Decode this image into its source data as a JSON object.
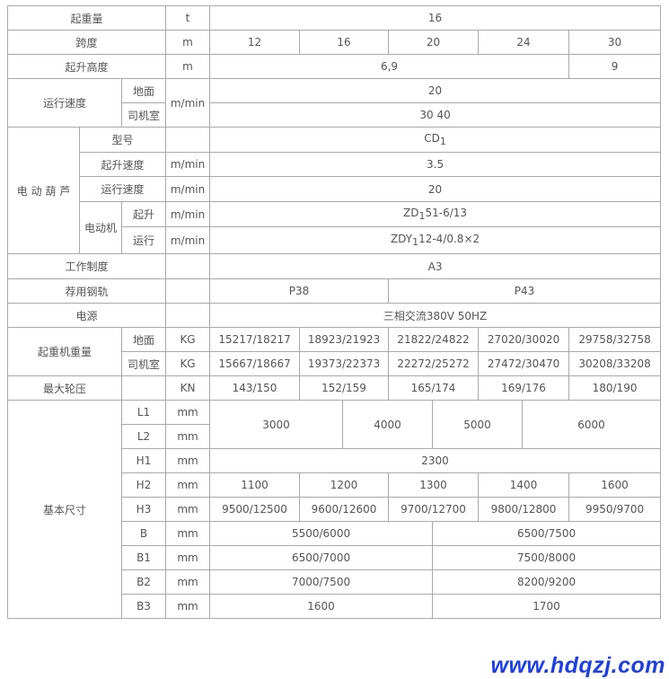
{
  "capacity": {
    "label": "起重量",
    "unit": "t",
    "value": "16"
  },
  "span": {
    "label": "跨度",
    "unit": "m",
    "values": [
      "12",
      "16",
      "20",
      "24",
      "30"
    ]
  },
  "lift_height": {
    "label": "起升高度",
    "unit": "m",
    "values": [
      "6,9",
      "9"
    ]
  },
  "travel_speed": {
    "label": "运行速度",
    "unit": "m/min",
    "rows": [
      {
        "sub": "地面",
        "value": "20"
      },
      {
        "sub": "司机室",
        "value": "30 40"
      }
    ]
  },
  "hoist": {
    "label": "电 动 葫 芦",
    "model": {
      "label": "型号",
      "unit": "",
      "value": "CD",
      "subscript": "1"
    },
    "lift_speed": {
      "label": "起升速度",
      "unit": "m/min",
      "value": "3.5"
    },
    "travel_speed": {
      "label": "运行速度",
      "unit": "m/min",
      "value": "20"
    },
    "motor": {
      "label": "电动机",
      "rows": [
        {
          "sub": "起升",
          "unit": "m/min",
          "prefix": "ZD",
          "subscript": "1",
          "suffix": "51-6/13"
        },
        {
          "sub": "运行",
          "unit": "m/min",
          "prefix": "ZDY",
          "subscript": "1",
          "suffix": "12-4/0.8×2"
        }
      ]
    }
  },
  "duty": {
    "label": "工作制度",
    "value": "A3"
  },
  "rail": {
    "label": "荐用钢轨",
    "values": [
      "P38",
      "P43"
    ]
  },
  "power": {
    "label": "电源",
    "value": "三相交流380V 50HZ"
  },
  "crane_weight": {
    "label": "起重机重量",
    "rows": [
      {
        "sub": "地面",
        "unit": "KG",
        "values": [
          "15217/18217",
          "18923/21923",
          "21822/24822",
          "27020/30020",
          "29758/32758"
        ]
      },
      {
        "sub": "司机室",
        "unit": "KG",
        "values": [
          "15667/18667",
          "19373/22373",
          "22272/25272",
          "27472/30470",
          "30208/33208"
        ]
      }
    ]
  },
  "wheel_load": {
    "label": "最大轮压",
    "unit": "KN",
    "values": [
      "143/150",
      "152/159",
      "165/174",
      "169/176",
      "180/190"
    ]
  },
  "dimensions": {
    "label": "基本尺寸",
    "L1": {
      "label": "L1",
      "unit": "mm"
    },
    "L2": {
      "label": "L2",
      "unit": "mm"
    },
    "L_values": [
      "3000",
      "4000",
      "5000",
      "6000"
    ],
    "H1": {
      "label": "H1",
      "unit": "mm",
      "value": "2300"
    },
    "H2": {
      "label": "H2",
      "unit": "mm",
      "values": [
        "1100",
        "1200",
        "1300",
        "1400",
        "1600"
      ]
    },
    "H3": {
      "label": "H3",
      "unit": "mm",
      "values": [
        "9500/12500",
        "9600/12600",
        "9700/12700",
        "9800/12800",
        "9950/9700"
      ]
    },
    "B": {
      "label": "B",
      "unit": "mm",
      "values": [
        "5500/6000",
        "6500/7500"
      ]
    },
    "B1": {
      "label": "B1",
      "unit": "mm",
      "values": [
        "6500/7000",
        "7500/8000"
      ]
    },
    "B2": {
      "label": "B2",
      "unit": "mm",
      "values": [
        "7000/7500",
        "8200/9200"
      ]
    },
    "B3": {
      "label": "B3",
      "unit": "mm",
      "values": [
        "1600",
        "1700"
      ]
    }
  },
  "watermark": "www.hdqzj.com"
}
